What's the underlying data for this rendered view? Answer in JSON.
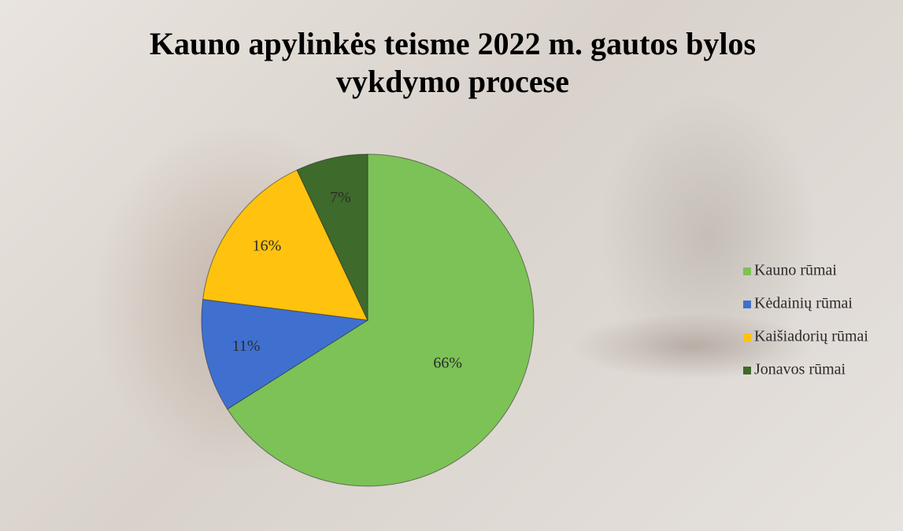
{
  "chart_data": {
    "type": "pie",
    "title": "Kauno apylinkės teisme 2022 m. gautos bylos vykdymo procese",
    "categories": [
      "Kauno rūmai",
      "Kėdainių rūmai",
      "Kaišiadorių rūmai",
      "Jonavos rūmai"
    ],
    "values": [
      66,
      11,
      16,
      7
    ],
    "value_labels": [
      "66%",
      "11%",
      "16%",
      "7%"
    ],
    "colors": [
      "#7cc257",
      "#3f70cf",
      "#ffc20e",
      "#3e6a2b"
    ],
    "legend": "right"
  }
}
